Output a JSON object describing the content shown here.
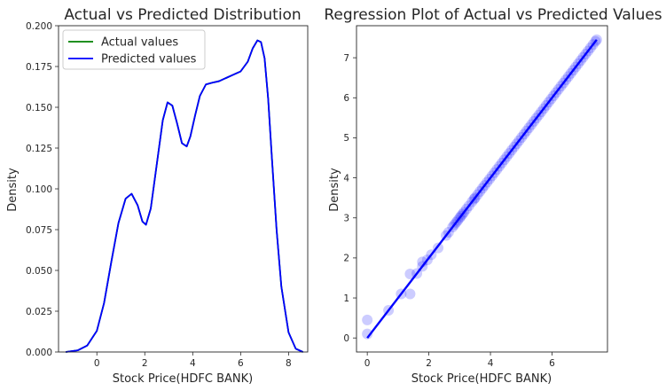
{
  "chart_data": [
    {
      "type": "line",
      "title": "Actual vs Predicted Distribution",
      "xlabel": "Stock Price(HDFC BANK)",
      "ylabel": "Density",
      "xlim": [
        -1.6,
        8.8
      ],
      "ylim": [
        0,
        0.2
      ],
      "x_ticks": [
        0,
        2,
        4,
        6,
        8
      ],
      "y_ticks": [
        0.0,
        0.025,
        0.05,
        0.075,
        0.1,
        0.125,
        0.15,
        0.175,
        0.2
      ],
      "y_tick_labels": [
        "0.000",
        "0.025",
        "0.050",
        "0.075",
        "0.100",
        "0.125",
        "0.150",
        "0.175",
        "0.200"
      ],
      "legend_position": "top-left",
      "series": [
        {
          "name": "Actual values",
          "color": "#008000",
          "x": [
            -1.3,
            -0.8,
            -0.4,
            0.0,
            0.3,
            0.6,
            0.9,
            1.2,
            1.45,
            1.7,
            1.9,
            2.05,
            2.25,
            2.5,
            2.75,
            2.95,
            3.15,
            3.35,
            3.55,
            3.75,
            3.9,
            4.1,
            4.3,
            4.55,
            4.8,
            5.1,
            5.4,
            5.7,
            6.0,
            6.3,
            6.5,
            6.7,
            6.85,
            7.0,
            7.15,
            7.3,
            7.5,
            7.7,
            8.0,
            8.3,
            8.6
          ],
          "y": [
            0.0,
            0.001,
            0.004,
            0.013,
            0.03,
            0.055,
            0.079,
            0.094,
            0.097,
            0.09,
            0.08,
            0.078,
            0.088,
            0.115,
            0.142,
            0.153,
            0.151,
            0.14,
            0.128,
            0.126,
            0.132,
            0.145,
            0.157,
            0.164,
            0.165,
            0.166,
            0.168,
            0.17,
            0.172,
            0.178,
            0.186,
            0.191,
            0.19,
            0.18,
            0.155,
            0.12,
            0.075,
            0.04,
            0.012,
            0.002,
            0.0
          ]
        },
        {
          "name": "Predicted values",
          "color": "#0000FF",
          "x": [
            -1.3,
            -0.8,
            -0.4,
            0.0,
            0.3,
            0.6,
            0.9,
            1.2,
            1.45,
            1.7,
            1.9,
            2.05,
            2.25,
            2.5,
            2.75,
            2.95,
            3.15,
            3.35,
            3.55,
            3.75,
            3.9,
            4.1,
            4.3,
            4.55,
            4.8,
            5.1,
            5.4,
            5.7,
            6.0,
            6.3,
            6.5,
            6.7,
            6.85,
            7.0,
            7.15,
            7.3,
            7.5,
            7.7,
            8.0,
            8.3,
            8.6
          ],
          "y": [
            0.0,
            0.001,
            0.004,
            0.013,
            0.03,
            0.055,
            0.079,
            0.094,
            0.097,
            0.09,
            0.08,
            0.078,
            0.088,
            0.115,
            0.142,
            0.153,
            0.151,
            0.14,
            0.128,
            0.126,
            0.132,
            0.145,
            0.157,
            0.164,
            0.165,
            0.166,
            0.168,
            0.17,
            0.172,
            0.178,
            0.186,
            0.191,
            0.19,
            0.18,
            0.155,
            0.12,
            0.075,
            0.04,
            0.012,
            0.002,
            0.0
          ]
        }
      ]
    },
    {
      "type": "scatter",
      "title": "Regression Plot of Actual vs Predicted Values",
      "xlabel": "Stock Price(HDFC BANK)",
      "ylabel": "Density",
      "xlim": [
        -0.35,
        7.8
      ],
      "ylim": [
        -0.35,
        7.8
      ],
      "x_ticks": [
        0,
        2,
        4,
        6
      ],
      "y_ticks": [
        0,
        1,
        2,
        3,
        4,
        5,
        6,
        7
      ],
      "color": "#0000FF",
      "regression_line": {
        "x": [
          0,
          7.45
        ],
        "y": [
          0,
          7.45
        ]
      },
      "points": {
        "x": [
          0.0,
          0.0,
          0.69,
          1.1,
          1.39,
          1.39,
          1.61,
          1.79,
          1.79,
          1.95,
          2.08,
          2.3,
          2.56,
          2.64,
          2.77,
          2.83,
          2.89,
          2.94,
          3.0,
          3.04,
          3.09,
          3.14,
          3.22,
          3.3,
          3.4,
          3.47,
          3.5,
          3.58,
          3.66,
          3.74,
          3.81,
          3.89,
          3.97,
          4.05,
          4.13,
          4.21,
          4.29,
          4.37,
          4.45,
          4.53,
          4.61,
          4.69,
          4.77,
          4.85,
          4.93,
          5.01,
          5.09,
          5.17,
          5.25,
          5.33,
          5.41,
          5.49,
          5.57,
          5.65,
          5.73,
          5.81,
          5.89,
          5.97,
          6.05,
          6.13,
          6.21,
          6.29,
          6.37,
          6.45,
          6.53,
          6.61,
          6.69,
          6.77,
          6.85,
          6.93,
          7.01,
          7.09,
          7.17,
          7.25,
          7.33,
          7.41,
          7.45
        ],
        "y": [
          0.45,
          0.1,
          0.69,
          1.1,
          1.1,
          1.6,
          1.61,
          1.9,
          1.79,
          1.95,
          2.08,
          2.25,
          2.56,
          2.64,
          2.77,
          2.83,
          2.89,
          2.94,
          3.0,
          3.04,
          3.09,
          3.14,
          3.22,
          3.3,
          3.4,
          3.47,
          3.5,
          3.58,
          3.66,
          3.74,
          3.81,
          3.89,
          3.97,
          4.05,
          4.13,
          4.21,
          4.29,
          4.37,
          4.45,
          4.53,
          4.61,
          4.69,
          4.77,
          4.85,
          4.93,
          5.01,
          5.09,
          5.17,
          5.25,
          5.33,
          5.41,
          5.49,
          5.57,
          5.65,
          5.73,
          5.81,
          5.89,
          5.97,
          6.05,
          6.13,
          6.21,
          6.29,
          6.37,
          6.45,
          6.53,
          6.61,
          6.69,
          6.77,
          6.85,
          6.93,
          7.01,
          7.09,
          7.17,
          7.25,
          7.33,
          7.41,
          7.45
        ]
      }
    }
  ]
}
